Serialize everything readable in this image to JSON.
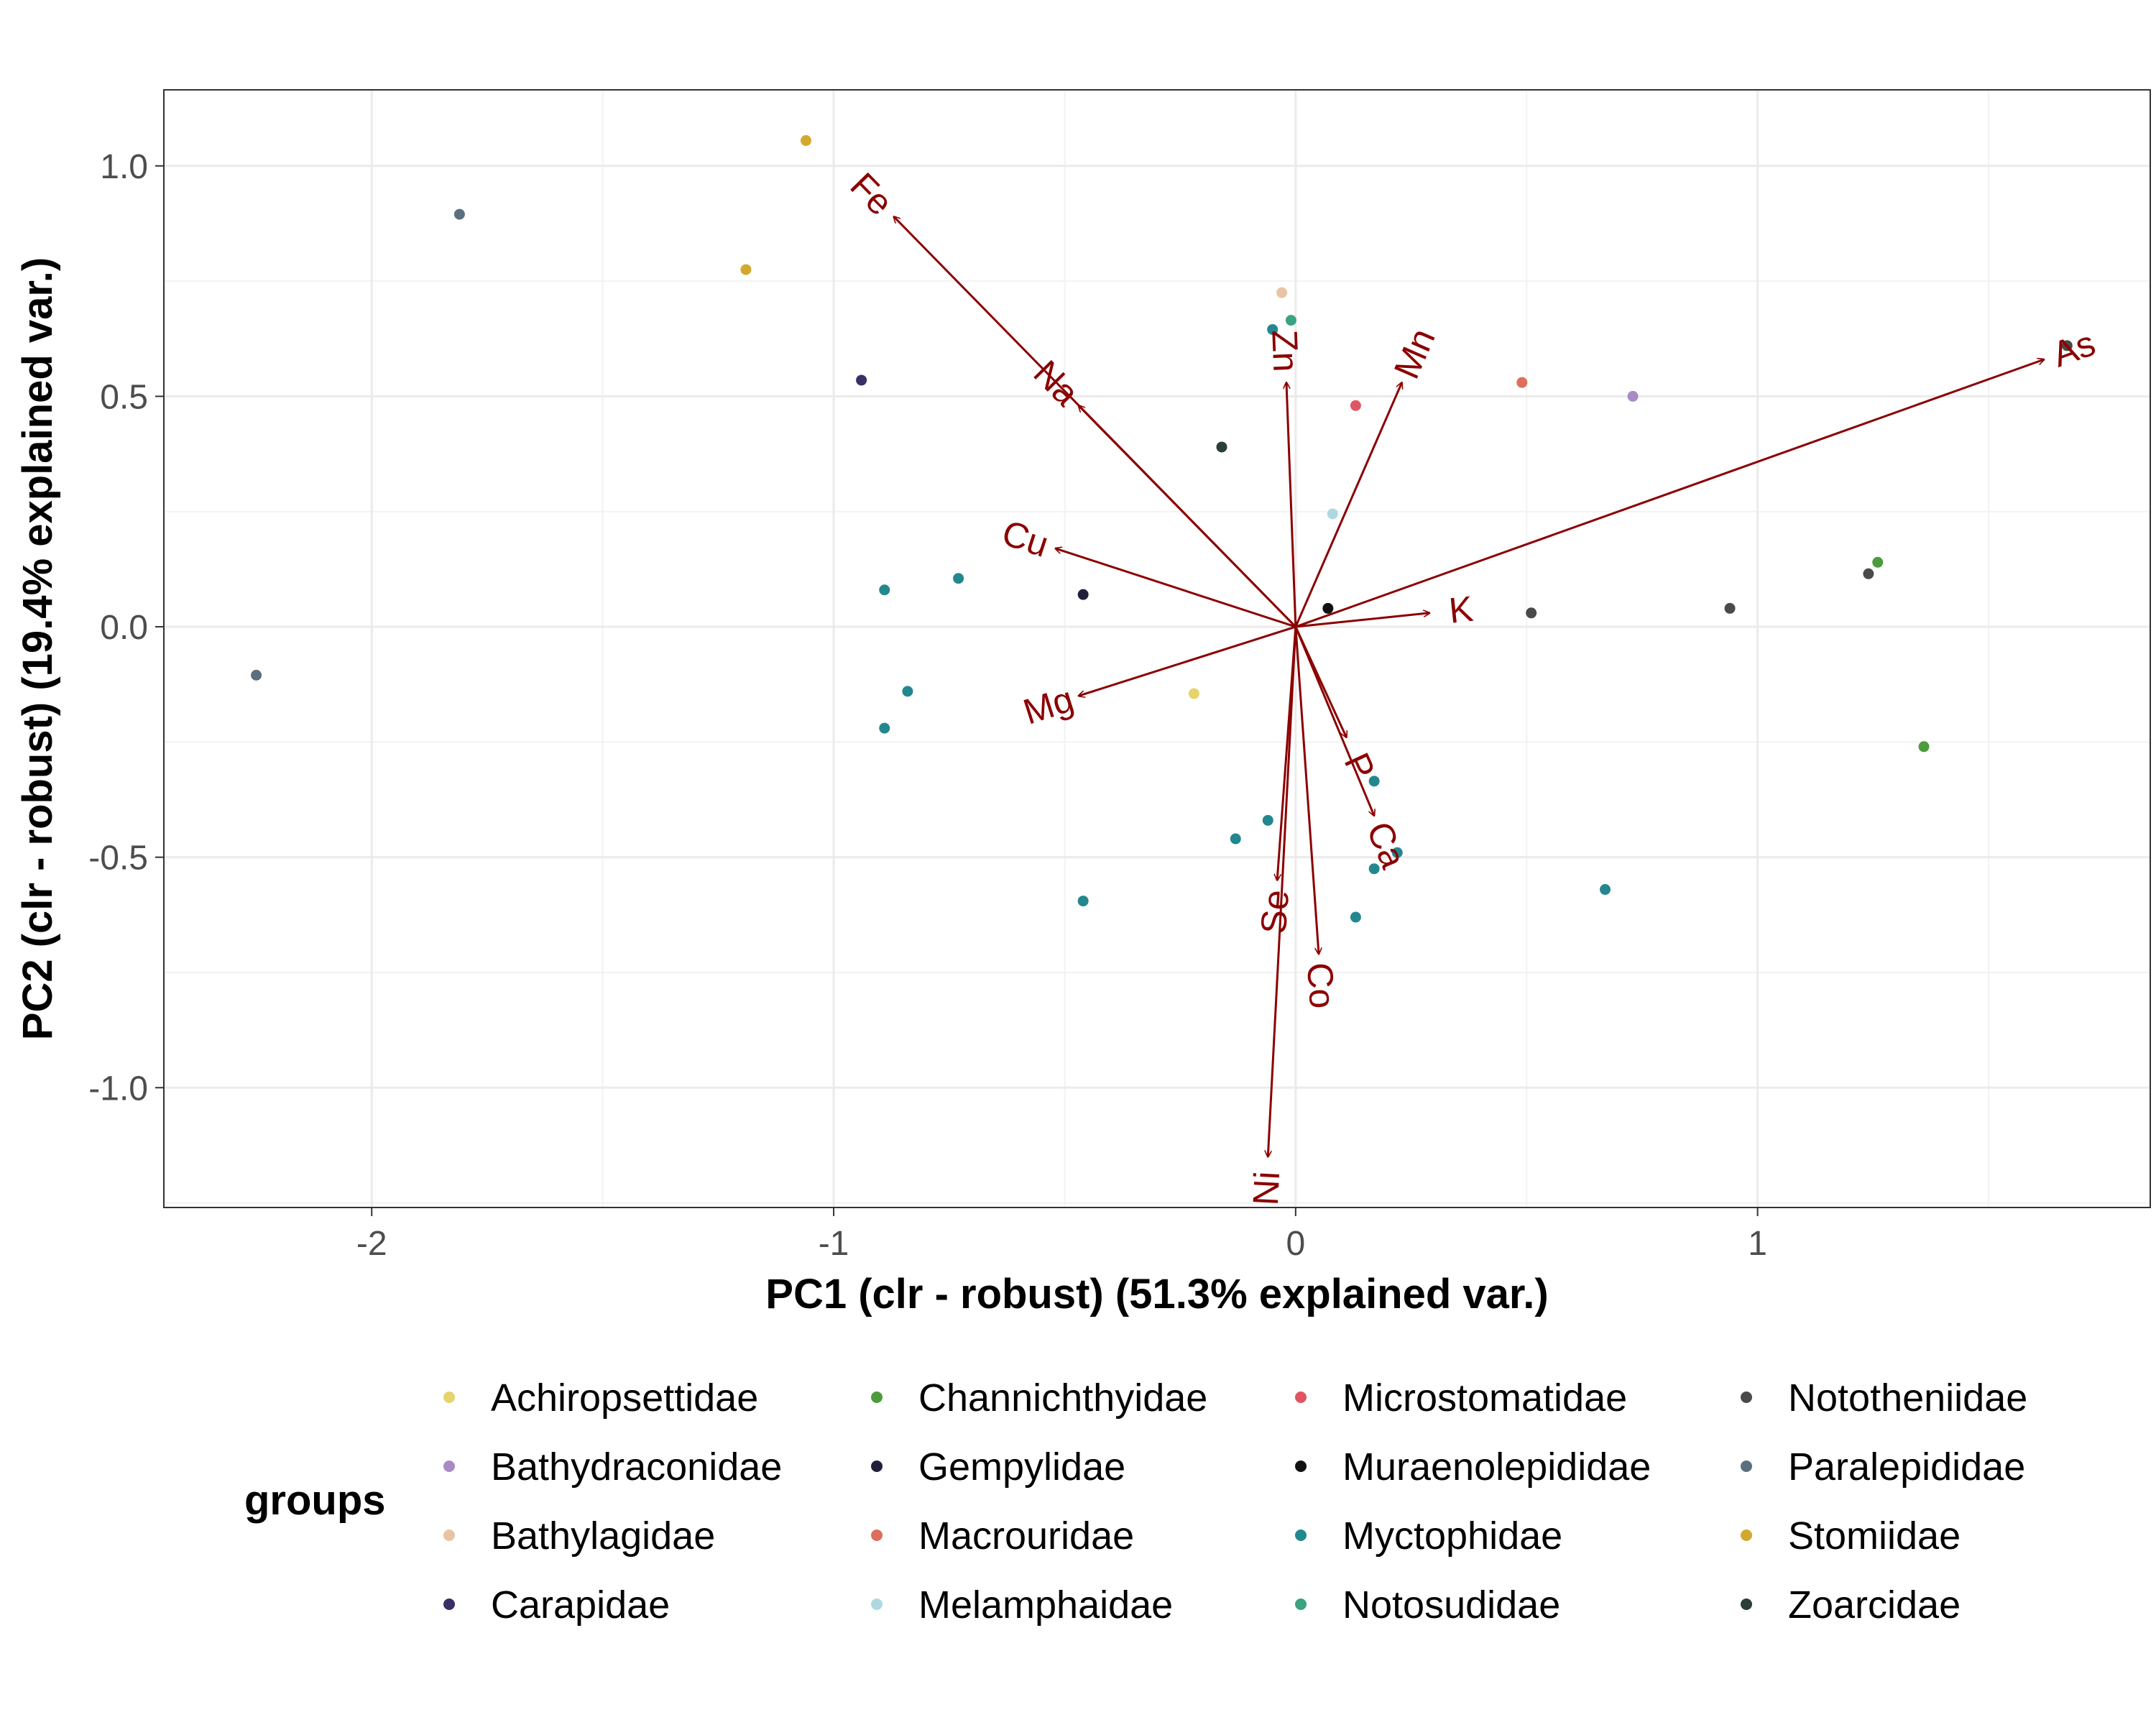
{
  "chart_data": {
    "type": "scatter",
    "xlabel": "PC1 (clr - robust) (51.3% explained var.)",
    "ylabel": "PC2 (clr - robust) (19.4% explained var.)",
    "xlim": [
      -2.45,
      1.85
    ],
    "ylim": [
      -1.26,
      1.165
    ],
    "x_ticks": [
      -2,
      -1,
      0,
      1
    ],
    "y_ticks": [
      -1.0,
      -0.5,
      0.0,
      0.5,
      1.0
    ],
    "x_tick_labels": [
      "-2",
      "-1",
      "0",
      "1"
    ],
    "y_tick_labels": [
      "-1.0",
      "-0.5",
      "0.0",
      "0.5",
      "1.0"
    ],
    "grid": true,
    "legend": {
      "title": "groups",
      "placement": "bottom",
      "columns": 4
    },
    "series": [
      {
        "name": "Achiropsettidae",
        "color": "#e6d36b",
        "points": [
          [
            -0.22,
            -0.145
          ]
        ]
      },
      {
        "name": "Bathydraconidae",
        "color": "#a88bc4",
        "points": [
          [
            0.73,
            0.5
          ]
        ]
      },
      {
        "name": "Bathylagidae",
        "color": "#e8c4a2",
        "points": [
          [
            -0.03,
            0.725
          ]
        ]
      },
      {
        "name": "Carapidae",
        "color": "#3b2f66",
        "points": [
          [
            -0.94,
            0.535
          ]
        ]
      },
      {
        "name": "Channichthyidae",
        "color": "#4c9c3b",
        "points": [
          [
            1.26,
            0.14
          ],
          [
            1.36,
            -0.26
          ]
        ]
      },
      {
        "name": "Gempylidae",
        "color": "#1f1f3a",
        "points": [
          [
            -0.46,
            0.07
          ]
        ]
      },
      {
        "name": "Macrouridae",
        "color": "#dd6e5b",
        "points": [
          [
            0.49,
            0.53
          ]
        ]
      },
      {
        "name": "Melamphaidae",
        "color": "#aed9e0",
        "points": [
          [
            0.08,
            0.245
          ]
        ]
      },
      {
        "name": "Microstomatidae",
        "color": "#e05563",
        "points": [
          [
            0.13,
            0.48
          ]
        ]
      },
      {
        "name": "Muraenolepididae",
        "color": "#111111",
        "points": [
          [
            0.07,
            0.04
          ]
        ]
      },
      {
        "name": "Myctophidae",
        "color": "#23878f",
        "points": [
          [
            -0.89,
            0.08
          ],
          [
            -0.73,
            0.105
          ],
          [
            -0.84,
            -0.14
          ],
          [
            -0.89,
            -0.22
          ],
          [
            -0.05,
            0.645
          ],
          [
            0.17,
            -0.335
          ],
          [
            0.22,
            -0.49
          ],
          [
            0.17,
            -0.525
          ],
          [
            -0.13,
            -0.46
          ],
          [
            -0.06,
            -0.42
          ],
          [
            0.13,
            -0.63
          ],
          [
            -0.46,
            -0.595
          ],
          [
            0.67,
            -0.57
          ]
        ]
      },
      {
        "name": "Notosudidae",
        "color": "#3aa37f",
        "points": [
          [
            -0.01,
            0.665
          ]
        ]
      },
      {
        "name": "Nototheniidae",
        "color": "#4a4a4a",
        "points": [
          [
            0.51,
            0.03
          ],
          [
            0.94,
            0.04
          ],
          [
            1.24,
            0.115
          ],
          [
            1.67,
            0.61
          ]
        ]
      },
      {
        "name": "Paralepididae",
        "color": "#5b6f7e",
        "points": [
          [
            -1.81,
            0.895
          ],
          [
            -2.25,
            -0.105
          ]
        ]
      },
      {
        "name": "Stomiidae",
        "color": "#d4a82e",
        "points": [
          [
            -1.06,
            1.055
          ],
          [
            -1.19,
            0.775
          ]
        ]
      },
      {
        "name": "Zoarcidae",
        "color": "#2c3e3a",
        "points": [
          [
            -0.16,
            0.39
          ]
        ]
      }
    ],
    "loadings": [
      {
        "name": "Fe",
        "x": -0.87,
        "y": 0.89
      },
      {
        "name": "Na",
        "x": -0.47,
        "y": 0.48
      },
      {
        "name": "Zn",
        "x": -0.02,
        "y": 0.53
      },
      {
        "name": "Mn",
        "x": 0.23,
        "y": 0.53
      },
      {
        "name": "As",
        "x": 1.62,
        "y": 0.58
      },
      {
        "name": "Cu",
        "x": -0.52,
        "y": 0.17
      },
      {
        "name": "K",
        "x": 0.29,
        "y": 0.03
      },
      {
        "name": "Mg",
        "x": -0.47,
        "y": -0.15
      },
      {
        "name": "P",
        "x": 0.11,
        "y": -0.24
      },
      {
        "name": "Ca",
        "x": 0.17,
        "y": -0.41
      },
      {
        "name": "Se",
        "x": -0.04,
        "y": -0.55
      },
      {
        "name": "Co",
        "x": 0.05,
        "y": -0.71
      },
      {
        "name": "Ni",
        "x": -0.06,
        "y": -1.15
      }
    ],
    "loading_color": "#8b0000"
  }
}
